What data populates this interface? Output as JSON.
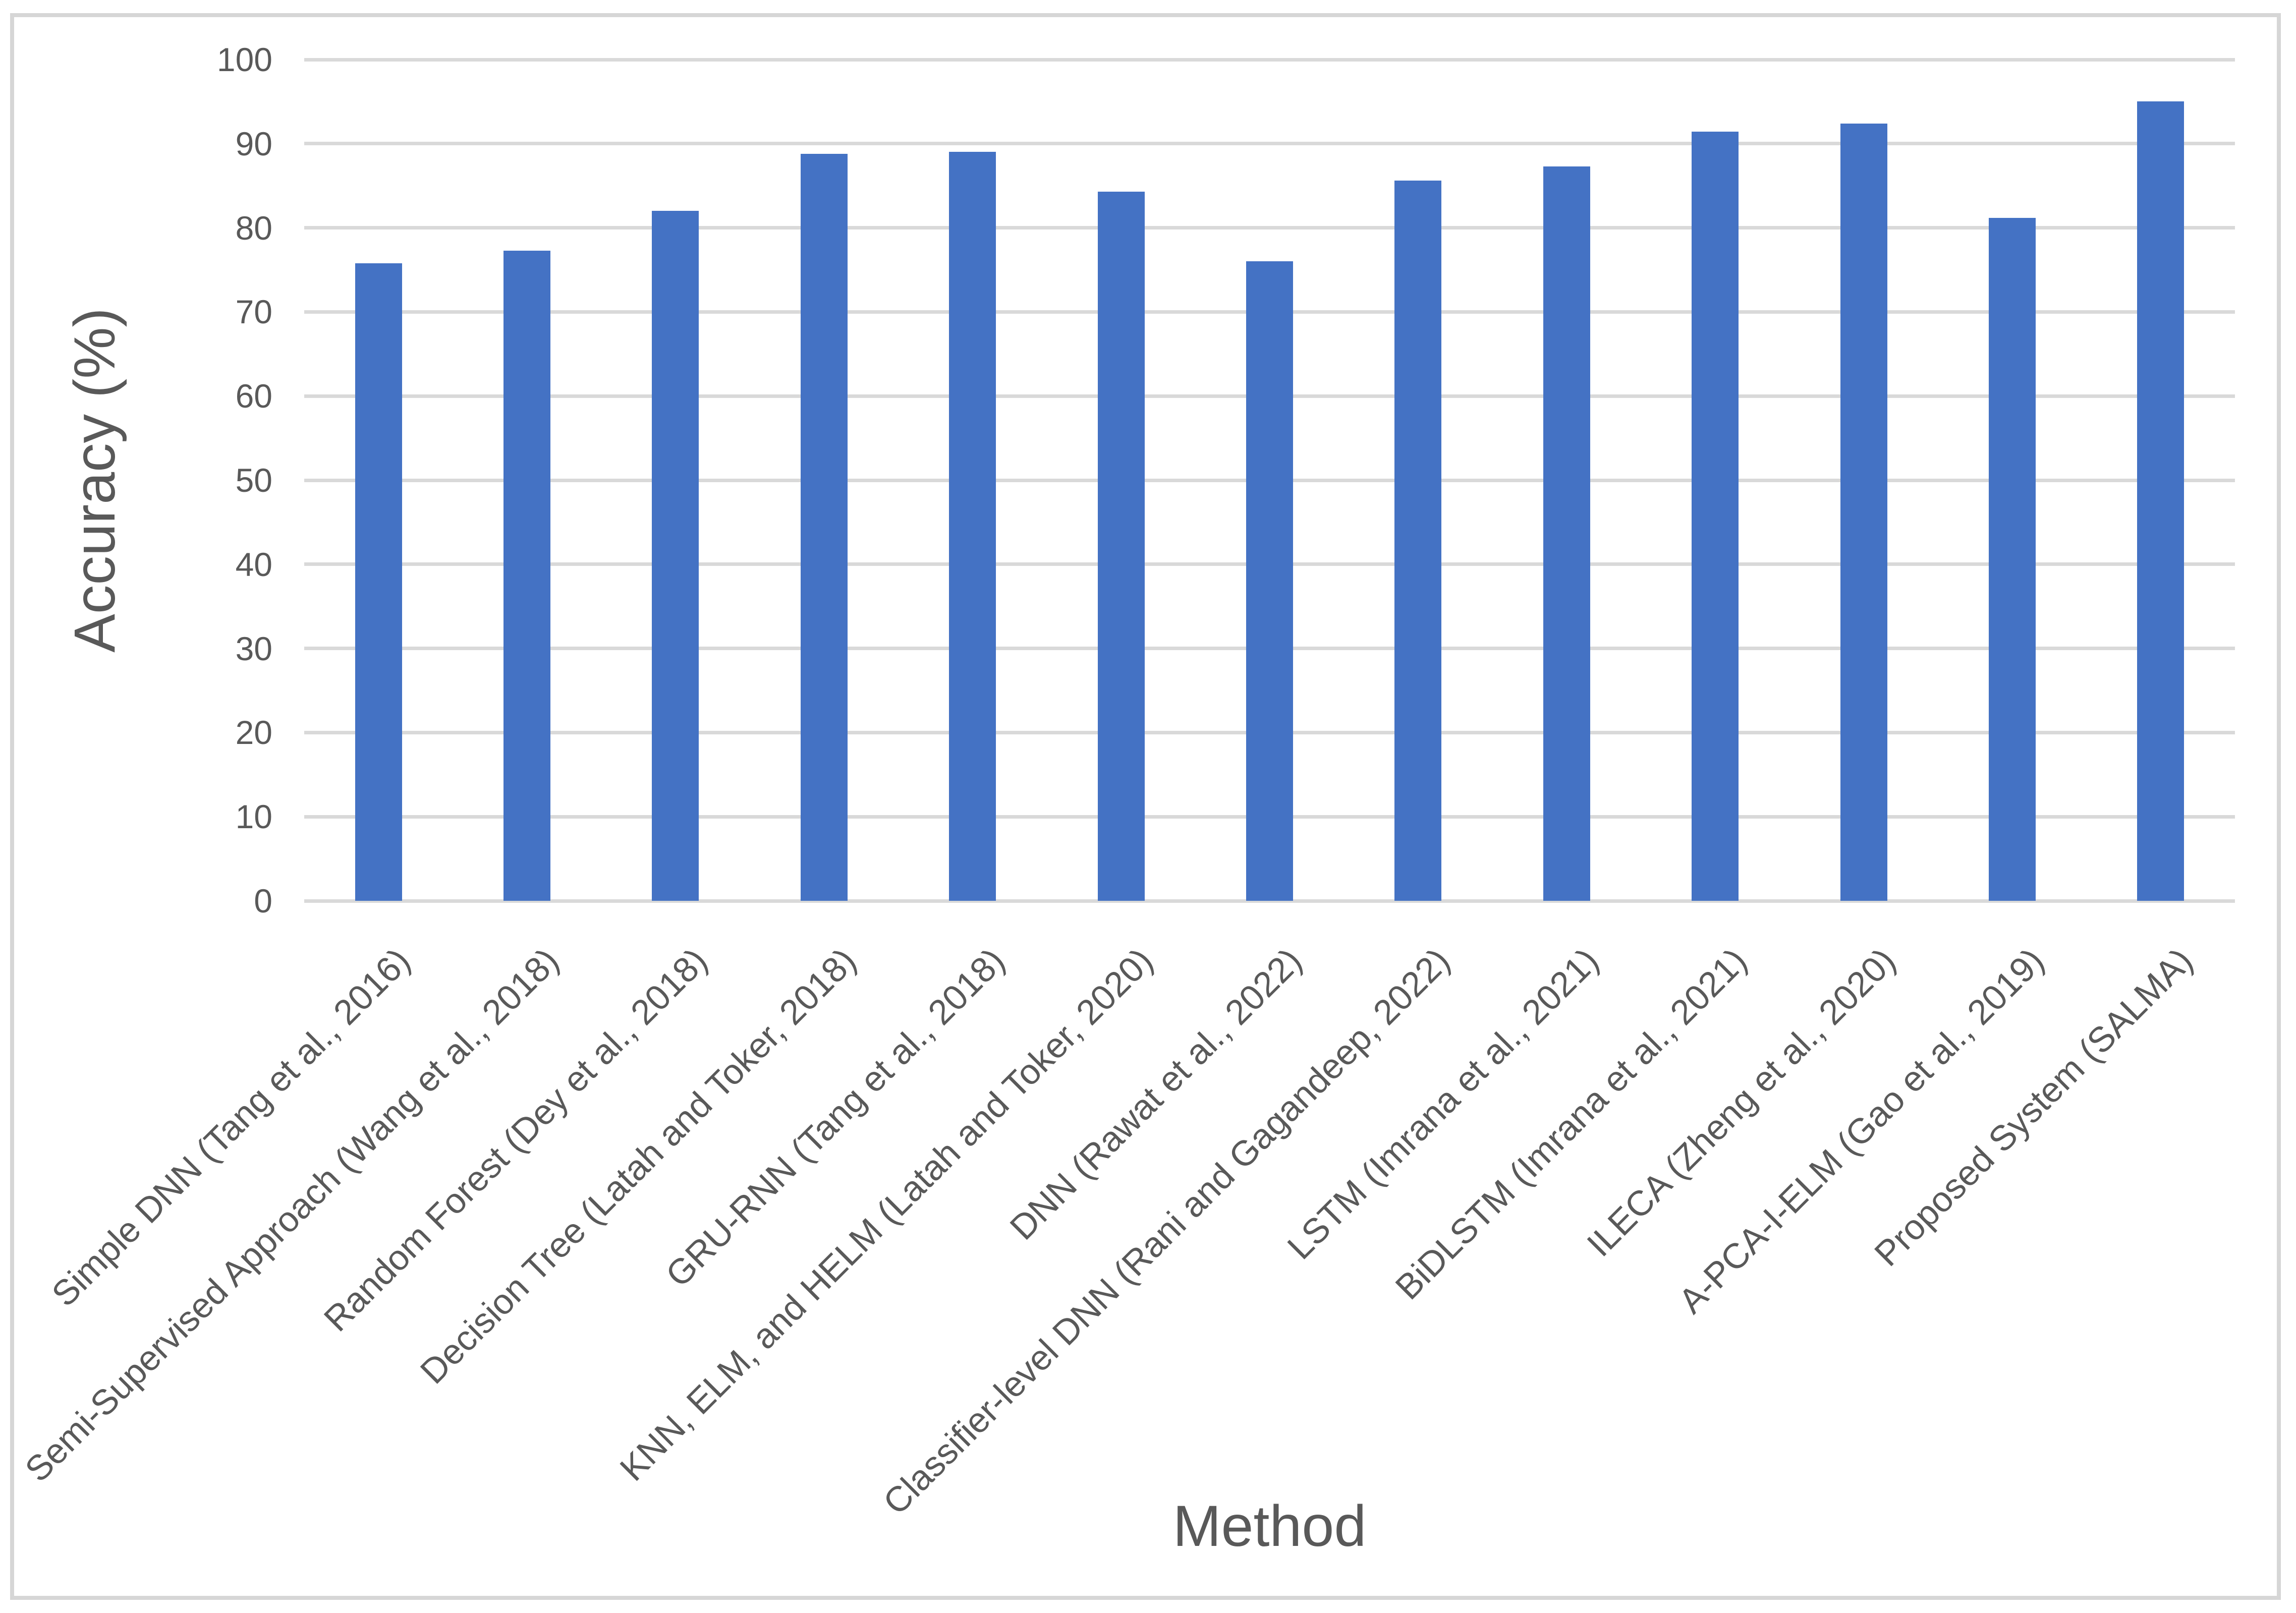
{
  "chart_data": {
    "type": "bar",
    "title": "",
    "xlabel": "Method",
    "ylabel": "Accuracy (%)",
    "categories": [
      "Simple DNN (Tang et al., 2016)",
      "Semi-Supervised Approach (Wang et al., 2018)",
      "Random Forest (Dey et al., 2018)",
      "Decision Tree (Latah and Toker, 2018)",
      "GRU-RNN (Tang et al., 2018)",
      "KNN, ELM, and HELM (Latah and Toker, 2020)",
      "DNN (Rawat et al., 2022)",
      "Classifier-level DNN (Rani and Gagandeep, 2022)",
      "LSTM (Imrana et al., 2021)",
      "BiDLSTM (Imrana et al., 2021)",
      "ILECA (Zheng et al., 2020)",
      "A-PCA-I-ELM (Gao et al., 2019)",
      "Proposed System (SALMA)"
    ],
    "values": [
      75.8,
      77.3,
      82.0,
      88.8,
      89.0,
      84.3,
      76.0,
      85.6,
      87.3,
      91.4,
      92.4,
      81.2,
      95.0
    ],
    "ylim": [
      0,
      100
    ],
    "y_ticks": [
      0,
      10,
      20,
      30,
      40,
      50,
      60,
      70,
      80,
      90,
      100
    ],
    "grid": "horizontal-only",
    "legend": "none",
    "colors": {
      "bar": "#4472C4",
      "gridline": "#D9D9D9",
      "axis_text": "#595959",
      "frame_border": "#D6D6D6",
      "background": "#FFFFFF"
    }
  }
}
